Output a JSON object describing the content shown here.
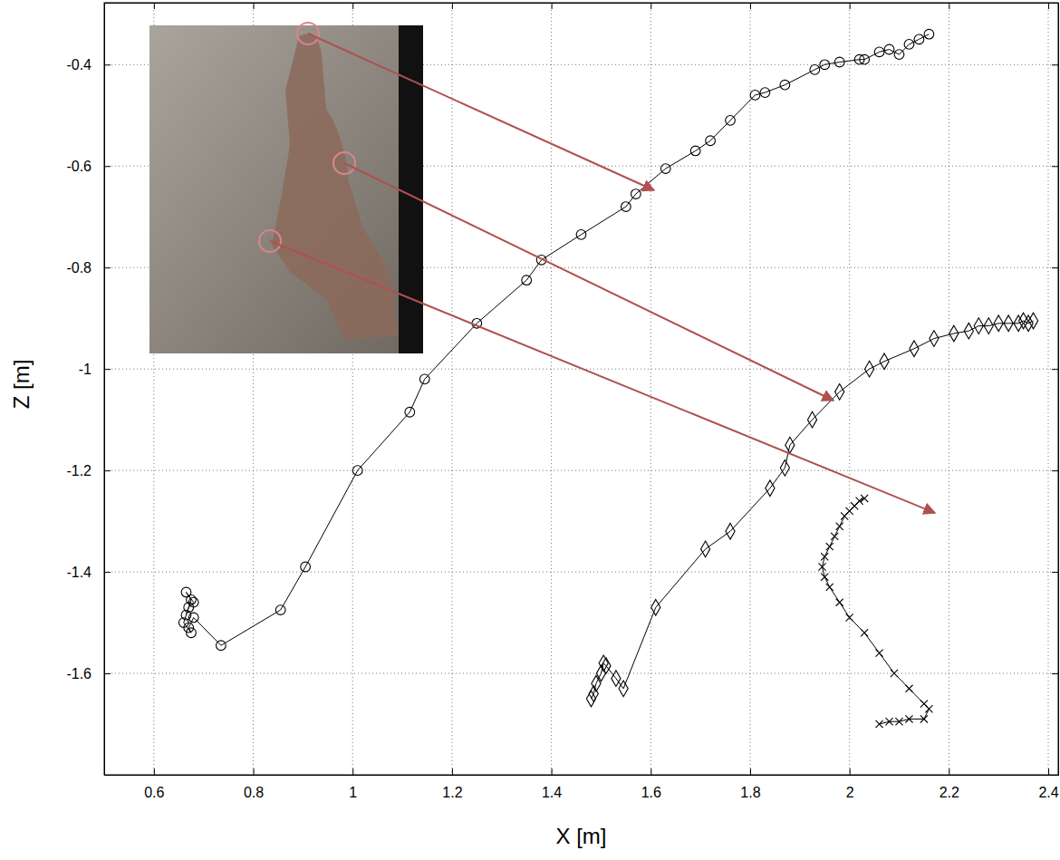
{
  "chart_data": {
    "type": "line",
    "x_label": "X [m]",
    "y_label": "Z [m]",
    "xlim": [
      0.5,
      2.42
    ],
    "ylim": [
      -1.8,
      -0.278
    ],
    "xticks": [
      0.6,
      0.8,
      1,
      1.2,
      1.4,
      1.6,
      1.8,
      2,
      2.2,
      2.4
    ],
    "yticks": [
      -1.6,
      -1.4,
      -1.2,
      -1,
      -0.8,
      -0.6,
      -0.4
    ],
    "grid": true,
    "series": [
      {
        "color": "#000000",
        "marker": "circle",
        "line_style": "solid",
        "x": [
          2.16,
          2.14,
          2.12,
          2.1,
          2.08,
          2.06,
          2.03,
          2.02,
          1.98,
          1.95,
          1.93,
          1.87,
          1.83,
          1.81,
          1.76,
          1.72,
          1.69,
          1.63,
          1.57,
          1.55,
          1.46,
          1.38,
          1.35,
          1.25,
          1.145,
          1.115,
          1.01,
          0.905,
          0.855,
          0.735,
          0.68,
          0.67,
          0.675,
          0.66,
          0.67,
          0.68,
          0.665,
          0.675,
          0.665
        ],
        "values": [
          -0.34,
          -0.35,
          -0.36,
          -0.38,
          -0.37,
          -0.375,
          -0.39,
          -0.39,
          -0.395,
          -0.4,
          -0.41,
          -0.44,
          -0.455,
          -0.46,
          -0.51,
          -0.55,
          -0.57,
          -0.605,
          -0.655,
          -0.68,
          -0.735,
          -0.785,
          -0.825,
          -0.91,
          -1.02,
          -1.085,
          -1.2,
          -1.39,
          -1.475,
          -1.545,
          -1.49,
          -1.51,
          -1.52,
          -1.5,
          -1.47,
          -1.46,
          -1.44,
          -1.455,
          -1.485
        ]
      },
      {
        "color": "#000000",
        "marker": "diamond",
        "line_style": "solid",
        "x": [
          2.37,
          2.36,
          2.35,
          2.34,
          2.32,
          2.3,
          2.28,
          2.26,
          2.24,
          2.21,
          2.17,
          2.13,
          2.07,
          2.04,
          1.98,
          1.925,
          1.88,
          1.87,
          1.84,
          1.76,
          1.71,
          1.61,
          1.545,
          1.53,
          1.51,
          1.505,
          1.5,
          1.49,
          1.485,
          1.48
        ],
        "values": [
          -0.905,
          -0.91,
          -0.905,
          -0.91,
          -0.91,
          -0.91,
          -0.915,
          -0.915,
          -0.925,
          -0.93,
          -0.94,
          -0.96,
          -0.985,
          -1.0,
          -1.045,
          -1.1,
          -1.15,
          -1.195,
          -1.235,
          -1.32,
          -1.355,
          -1.47,
          -1.63,
          -1.61,
          -1.585,
          -1.58,
          -1.6,
          -1.62,
          -1.64,
          -1.65
        ]
      },
      {
        "color": "#000000",
        "marker": "x",
        "line_style": "solid",
        "x": [
          2.03,
          2.02,
          2.01,
          2.0,
          1.99,
          1.98,
          1.97,
          1.96,
          1.95,
          1.945,
          1.95,
          1.96,
          1.98,
          2.0,
          2.03,
          2.06,
          2.09,
          2.12,
          2.15,
          2.16,
          2.15,
          2.12,
          2.1,
          2.08,
          2.06
        ],
        "values": [
          -1.255,
          -1.26,
          -1.27,
          -1.28,
          -1.29,
          -1.31,
          -1.33,
          -1.35,
          -1.37,
          -1.39,
          -1.41,
          -1.43,
          -1.46,
          -1.49,
          -1.52,
          -1.56,
          -1.6,
          -1.63,
          -1.66,
          -1.67,
          -1.69,
          -1.69,
          -1.695,
          -1.695,
          -1.7
        ]
      }
    ]
  }
}
